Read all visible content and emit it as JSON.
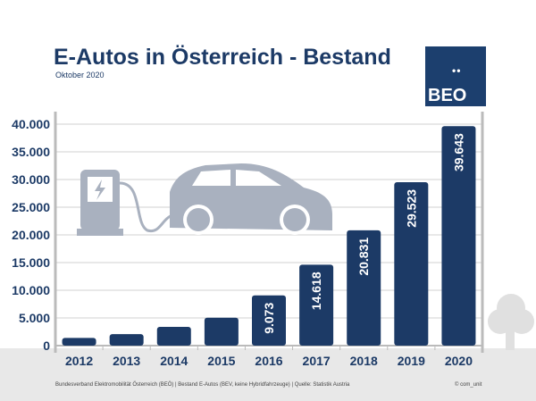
{
  "header": {
    "title": "E-Autos in Österreich - Bestand",
    "subtitle": "Oktober 2020",
    "logo_text": "BEO",
    "logo_dots": "••"
  },
  "footer": {
    "source": "Bundesverband Elektromobilität Österreich (BEÖ) | Bestand E-Autos (BEV, keine Hybridfahrzeuge) | Quelle: Statistik Austria",
    "copyright": "© com_unit"
  },
  "colors": {
    "bar": "#1c3a66",
    "icon": "#a9b1bf",
    "ground": "#e8e8e8"
  },
  "chart_data": {
    "type": "bar",
    "title": "E-Autos in Österreich - Bestand",
    "categories": [
      "2012",
      "2013",
      "2014",
      "2015",
      "2016",
      "2017",
      "2018",
      "2019",
      "2020"
    ],
    "values": [
      1389,
      2070,
      3386,
      5032,
      9073,
      14618,
      20831,
      29523,
      39643
    ],
    "data_labels": [
      "",
      "",
      "",
      "",
      "9.073",
      "14.618",
      "20.831",
      "29.523",
      "39.643"
    ],
    "yticks": [
      "0",
      "5.000",
      "10.000",
      "15.000",
      "20.000",
      "25.000",
      "30.000",
      "35.000",
      "40.000"
    ],
    "ylim": [
      0,
      40000
    ],
    "grid": true,
    "xlabel": "",
    "ylabel": ""
  }
}
